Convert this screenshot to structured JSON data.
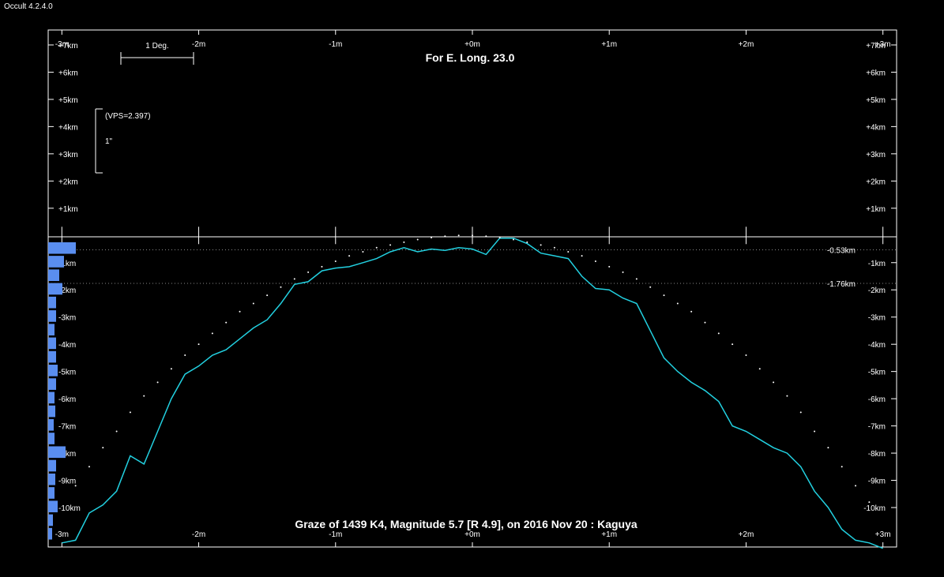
{
  "app": {
    "title": "Occult 4.2.4.0"
  },
  "chart_data": {
    "type": "line",
    "title": "For E. Long. 23.0",
    "caption": "Graze of  1439 K4,  Magnitude 5.7 [R 4.9],  on 2016 Nov 20  :  Kaguya",
    "x_ticks": [
      {
        "v": -3,
        "label": "-3m"
      },
      {
        "v": -2,
        "label": "-2m"
      },
      {
        "v": -1,
        "label": "-1m"
      },
      {
        "v": 0,
        "label": "+0m"
      },
      {
        "v": 1,
        "label": "+1m"
      },
      {
        "v": 2,
        "label": "+2m"
      },
      {
        "v": 3,
        "label": "+3m"
      }
    ],
    "y_ticks": [
      {
        "v": 7,
        "label": "+7km"
      },
      {
        "v": 6,
        "label": "+6km"
      },
      {
        "v": 5,
        "label": "+5km"
      },
      {
        "v": 4,
        "label": "+4km"
      },
      {
        "v": 3,
        "label": "+3km"
      },
      {
        "v": 2,
        "label": "+2km"
      },
      {
        "v": 1,
        "label": "+1km"
      },
      {
        "v": -1,
        "label": "-1km"
      },
      {
        "v": -2,
        "label": "-2km"
      },
      {
        "v": -3,
        "label": "-3km"
      },
      {
        "v": -4,
        "label": "-4km"
      },
      {
        "v": -5,
        "label": "-5km"
      },
      {
        "v": -6,
        "label": "-6km"
      },
      {
        "v": -7,
        "label": "-7km"
      },
      {
        "v": -8,
        "label": "-8km"
      },
      {
        "v": -9,
        "label": "-9km"
      },
      {
        "v": -10,
        "label": "-10km"
      }
    ],
    "xlim": [
      -3.1,
      3.1
    ],
    "ylim": [
      -11.45,
      7.55
    ],
    "reference_lines": [
      {
        "y": -0.53,
        "label": "-0.53km"
      },
      {
        "y": -1.76,
        "label": "-1.76km"
      }
    ],
    "scale_bar": {
      "label": "1 Deg."
    },
    "vertical_scale": {
      "label1": "(VPS=2.397)",
      "label2": "1\""
    },
    "series": [
      {
        "color": "#22d0e0",
        "style": "line",
        "x": [
          -3.0,
          -2.9,
          -2.8,
          -2.7,
          -2.6,
          -2.5,
          -2.4,
          -2.3,
          -2.2,
          -2.1,
          -2.0,
          -1.9,
          -1.8,
          -1.7,
          -1.6,
          -1.5,
          -1.4,
          -1.3,
          -1.2,
          -1.1,
          -1.0,
          -0.9,
          -0.8,
          -0.7,
          -0.6,
          -0.5,
          -0.4,
          -0.3,
          -0.2,
          -0.1,
          0.0,
          0.1,
          0.2,
          0.3,
          0.4,
          0.5,
          0.6,
          0.7,
          0.8,
          0.9,
          1.0,
          1.1,
          1.2,
          1.3,
          1.4,
          1.5,
          1.6,
          1.7,
          1.8,
          1.9,
          2.0,
          2.1,
          2.2,
          2.3,
          2.4,
          2.5,
          2.6,
          2.7,
          2.8,
          2.9,
          3.0
        ],
        "y": [
          -11.3,
          -11.2,
          -10.2,
          -9.9,
          -9.4,
          -8.1,
          -8.4,
          -7.2,
          -6.0,
          -5.1,
          -4.8,
          -4.4,
          -4.2,
          -3.8,
          -3.4,
          -3.1,
          -2.5,
          -1.8,
          -1.7,
          -1.3,
          -1.2,
          -1.15,
          -1.0,
          -0.85,
          -0.6,
          -0.45,
          -0.6,
          -0.5,
          -0.55,
          -0.45,
          -0.5,
          -0.7,
          -0.1,
          -0.1,
          -0.3,
          -0.65,
          -0.75,
          -0.85,
          -1.5,
          -1.95,
          -2.0,
          -2.3,
          -2.5,
          -3.5,
          -4.5,
          -5.0,
          -5.4,
          -5.7,
          -6.1,
          -7.0,
          -7.2,
          -7.5,
          -7.8,
          -8.0,
          -8.5,
          -9.4,
          -10.0,
          -10.8,
          -11.2,
          -11.3,
          -11.5
        ]
      },
      {
        "color": "#ffffff",
        "style": "dots",
        "x": [
          -2.9,
          -2.8,
          -2.7,
          -2.6,
          -2.5,
          -2.4,
          -2.3,
          -2.2,
          -2.1,
          -2.0,
          -1.9,
          -1.8,
          -1.7,
          -1.6,
          -1.5,
          -1.4,
          -1.3,
          -1.2,
          -1.1,
          -1.0,
          -0.9,
          -0.8,
          -0.7,
          -0.6,
          -0.5,
          -0.4,
          -0.3,
          -0.2,
          -0.1,
          0.0,
          0.1,
          0.2,
          0.3,
          0.4,
          0.5,
          0.6,
          0.7,
          0.8,
          0.9,
          1.0,
          1.1,
          1.2,
          1.3,
          1.4,
          1.5,
          1.6,
          1.7,
          1.8,
          1.9,
          2.0,
          2.1,
          2.2,
          2.3,
          2.4,
          2.5,
          2.6,
          2.7,
          2.8,
          2.9
        ],
        "y": [
          -9.2,
          -8.5,
          -7.8,
          -7.2,
          -6.5,
          -5.9,
          -5.4,
          -4.9,
          -4.4,
          -4.0,
          -3.6,
          -3.2,
          -2.8,
          -2.5,
          -2.2,
          -1.9,
          -1.6,
          -1.35,
          -1.15,
          -0.95,
          -0.75,
          -0.6,
          -0.45,
          -0.35,
          -0.25,
          -0.15,
          -0.08,
          -0.03,
          0.0,
          0.0,
          -0.03,
          -0.08,
          -0.15,
          -0.25,
          -0.35,
          -0.45,
          -0.6,
          -0.75,
          -0.95,
          -1.15,
          -1.35,
          -1.6,
          -1.9,
          -2.2,
          -2.5,
          -2.8,
          -3.2,
          -3.6,
          -4.0,
          -4.4,
          -4.9,
          -5.4,
          -5.9,
          -6.5,
          -7.2,
          -7.8,
          -8.5,
          -9.2,
          -9.8
        ]
      }
    ],
    "histogram": {
      "color": "#5a8ef0",
      "y": [
        -0.5,
        -1.0,
        -1.5,
        -2.0,
        -2.5,
        -3.0,
        -3.5,
        -4.0,
        -4.5,
        -5.0,
        -5.5,
        -6.0,
        -6.5,
        -7.0,
        -7.5,
        -8.0,
        -8.5,
        -9.0,
        -9.5,
        -10.0,
        -10.5,
        -11.0
      ],
      "values": [
        35,
        20,
        14,
        18,
        10,
        10,
        8,
        10,
        10,
        12,
        10,
        8,
        9,
        7,
        8,
        22,
        10,
        9,
        8,
        12,
        6,
        5
      ]
    }
  }
}
